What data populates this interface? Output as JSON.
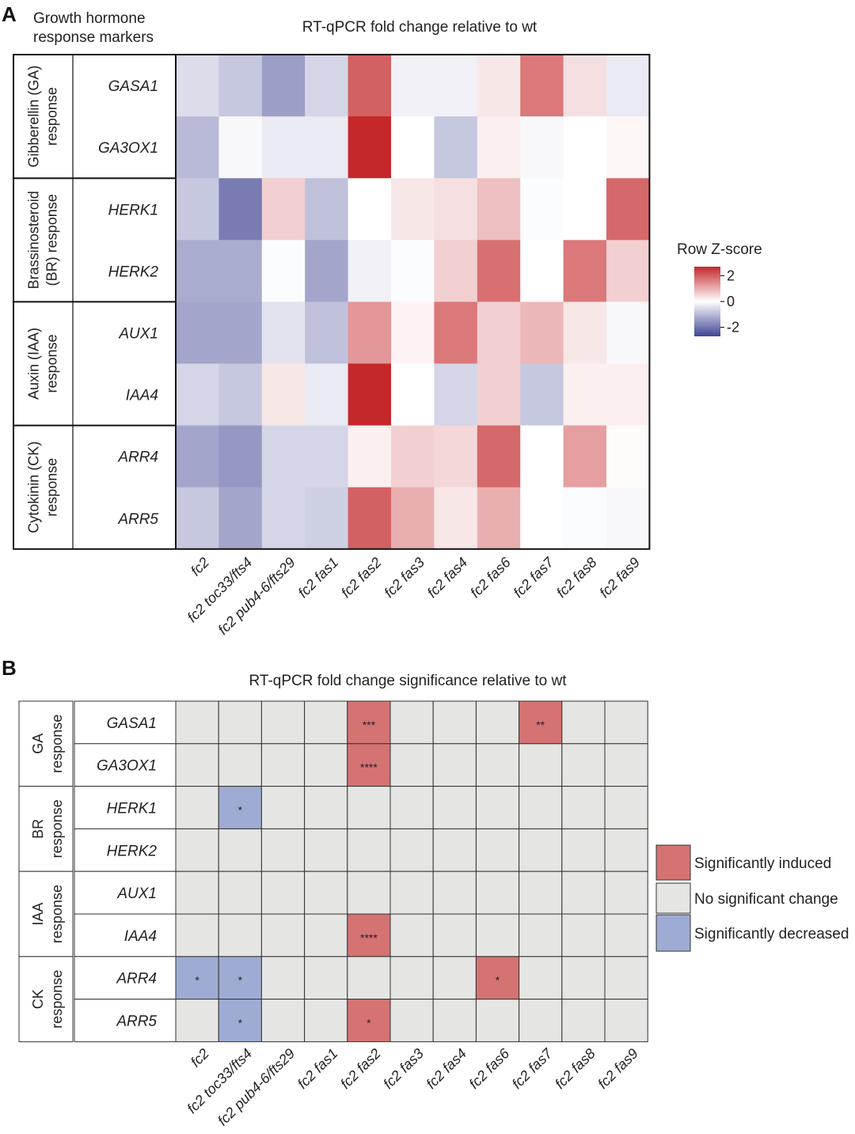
{
  "panel_a_letter": "A",
  "panel_b_letter": "B",
  "chart_data": [
    {
      "type": "heatmap",
      "title": "RT-qPCR fold change relative to wt",
      "row_header": [
        "Growth hormone",
        "response markers"
      ],
      "groups": [
        {
          "lines": [
            "Gibberellin (GA)",
            "response"
          ],
          "rows": 2
        },
        {
          "lines": [
            "Brassinosteroid",
            "(BR) response"
          ],
          "rows": 2
        },
        {
          "lines": [
            "Auxin (IAA)",
            "response"
          ],
          "rows": 2
        },
        {
          "lines": [
            "Cytokinin (CK)",
            "response"
          ],
          "rows": 2
        }
      ],
      "rows": [
        "GASA1",
        "GA3OX1",
        "HERK1",
        "HERK2",
        "AUX1",
        "IAA4",
        "ARR4",
        "ARR5"
      ],
      "columns": [
        "fc2",
        "fc2 toc33/fts4",
        "fc2 pub4-6/fts29",
        "fc2 fas1",
        "fc2 fas2",
        "fc2 fas3",
        "fc2 fas4",
        "fc2 fas6",
        "fc2 fas7",
        "fc2 fas8",
        "fc2 fas9"
      ],
      "values": [
        [
          -0.5,
          -0.8,
          -1.4,
          -0.6,
          2.0,
          -0.2,
          -0.2,
          0.3,
          1.7,
          0.4,
          -0.3
        ],
        [
          -1.0,
          -0.1,
          -0.3,
          -0.3,
          2.7,
          0.0,
          -0.8,
          0.2,
          -0.1,
          0.0,
          0.1
        ],
        [
          -0.8,
          -1.9,
          0.6,
          -0.9,
          0.0,
          0.3,
          0.4,
          0.8,
          -0.05,
          0.0,
          1.9
        ],
        [
          -1.2,
          -1.2,
          -0.05,
          -1.3,
          -0.2,
          -0.05,
          0.6,
          1.8,
          0.0,
          1.7,
          0.6
        ],
        [
          -1.3,
          -1.3,
          -0.4,
          -0.9,
          1.3,
          0.15,
          1.7,
          0.6,
          0.9,
          0.3,
          -0.1
        ],
        [
          -0.6,
          -0.8,
          0.3,
          -0.3,
          2.7,
          0.0,
          -0.6,
          0.6,
          -0.8,
          0.2,
          0.2
        ],
        [
          -1.3,
          -1.5,
          -0.6,
          -0.6,
          0.2,
          0.6,
          0.5,
          1.9,
          0.0,
          1.2,
          0.05
        ],
        [
          -0.8,
          -1.3,
          -0.6,
          -0.7,
          2.0,
          1.0,
          0.3,
          1.0,
          0.0,
          -0.05,
          -0.1
        ]
      ],
      "colorbar": {
        "label": "Row Z-score",
        "range": [
          -2.7,
          2.7
        ],
        "ticks": [
          "2",
          "0",
          "-2"
        ],
        "colors": {
          "low": "#3f4593",
          "mid": "#ffffff",
          "high": "#c4282b"
        }
      }
    },
    {
      "type": "table",
      "title": "RT-qPCR fold change significance relative to wt",
      "groups": [
        {
          "lines": [
            "GA",
            "response"
          ],
          "rows": 2
        },
        {
          "lines": [
            "BR",
            "response"
          ],
          "rows": 2
        },
        {
          "lines": [
            "IAA",
            "response"
          ],
          "rows": 2
        },
        {
          "lines": [
            "CK",
            "response"
          ],
          "rows": 2
        }
      ],
      "rows": [
        "GASA1",
        "GA3OX1",
        "HERK1",
        "HERK2",
        "AUX1",
        "IAA4",
        "ARR4",
        "ARR5"
      ],
      "columns": [
        "fc2",
        "fc2 toc33/fts4",
        "fc2 pub4-6/fts29",
        "fc2 fas1",
        "fc2 fas2",
        "fc2 fas3",
        "fc2 fas4",
        "fc2 fas6",
        "fc2 fas7",
        "fc2 fas8",
        "fc2 fas9"
      ],
      "cells": [
        [
          "n",
          "n",
          "n",
          "n",
          "up",
          "n",
          "n",
          "n",
          "up",
          "n",
          "n"
        ],
        [
          "n",
          "n",
          "n",
          "n",
          "up",
          "n",
          "n",
          "n",
          "n",
          "n",
          "n"
        ],
        [
          "n",
          "down",
          "n",
          "n",
          "n",
          "n",
          "n",
          "n",
          "n",
          "n",
          "n"
        ],
        [
          "n",
          "n",
          "n",
          "n",
          "n",
          "n",
          "n",
          "n",
          "n",
          "n",
          "n"
        ],
        [
          "n",
          "n",
          "n",
          "n",
          "n",
          "n",
          "n",
          "n",
          "n",
          "n",
          "n"
        ],
        [
          "n",
          "n",
          "n",
          "n",
          "up",
          "n",
          "n",
          "n",
          "n",
          "n",
          "n"
        ],
        [
          "down",
          "down",
          "n",
          "n",
          "n",
          "n",
          "n",
          "up",
          "n",
          "n",
          "n"
        ],
        [
          "n",
          "down",
          "n",
          "n",
          "up",
          "n",
          "n",
          "n",
          "n",
          "n",
          "n"
        ]
      ],
      "stars": [
        [
          "",
          "",
          "",
          "",
          "***",
          "",
          "",
          "",
          "**",
          "",
          ""
        ],
        [
          "",
          "",
          "",
          "",
          "****",
          "",
          "",
          "",
          "",
          "",
          ""
        ],
        [
          "",
          "*",
          "",
          "",
          "",
          "",
          "",
          "",
          "",
          "",
          ""
        ],
        [
          "",
          "",
          "",
          "",
          "",
          "",
          "",
          "",
          "",
          "",
          ""
        ],
        [
          "",
          "",
          "",
          "",
          "",
          "",
          "",
          "",
          "",
          "",
          ""
        ],
        [
          "",
          "",
          "",
          "",
          "****",
          "",
          "",
          "",
          "",
          "",
          ""
        ],
        [
          "*",
          "*",
          "",
          "",
          "",
          "",
          "",
          "*",
          "",
          "",
          ""
        ],
        [
          "",
          "*",
          "",
          "",
          "*",
          "",
          "",
          "",
          "",
          "",
          ""
        ]
      ],
      "legend": [
        {
          "key": "up",
          "label": "Significantly induced",
          "color": "#d57373"
        },
        {
          "key": "n",
          "label": "No significant change",
          "color": "#e5e5e3"
        },
        {
          "key": "down",
          "label": "Significantly decreased",
          "color": "#9eacd3"
        }
      ]
    }
  ]
}
